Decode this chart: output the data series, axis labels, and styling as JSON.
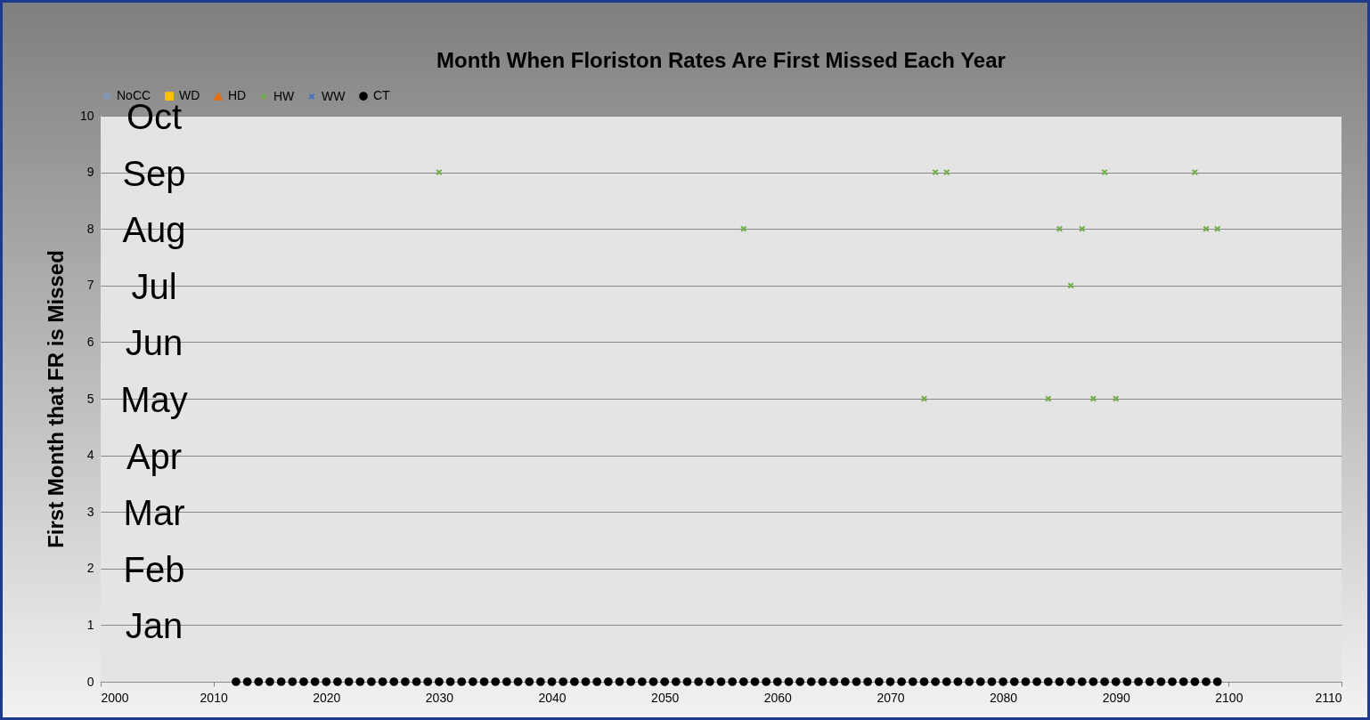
{
  "chart_data": {
    "type": "scatter",
    "title": "Month When Floriston Rates Are First Missed Each Year",
    "ylabel": "First Month that FR is Missed",
    "x": [
      2012,
      2013,
      2014,
      2015,
      2016,
      2017,
      2018,
      2019,
      2020,
      2021,
      2022,
      2023,
      2024,
      2025,
      2026,
      2027,
      2028,
      2029,
      2030,
      2031,
      2032,
      2033,
      2034,
      2035,
      2036,
      2037,
      2038,
      2039,
      2040,
      2041,
      2042,
      2043,
      2044,
      2045,
      2046,
      2047,
      2048,
      2049,
      2050,
      2051,
      2052,
      2053,
      2054,
      2055,
      2056,
      2057,
      2058,
      2059,
      2060,
      2061,
      2062,
      2063,
      2064,
      2065,
      2066,
      2067,
      2068,
      2069,
      2070,
      2071,
      2072,
      2073,
      2074,
      2075,
      2076,
      2077,
      2078,
      2079,
      2080,
      2081,
      2082,
      2083,
      2084,
      2085,
      2086,
      2087,
      2088,
      2089,
      2090,
      2091,
      2092,
      2093,
      2094,
      2095,
      2096,
      2097,
      2098,
      2099
    ],
    "series": [
      {
        "name": "NoCC",
        "color": "#8497b0",
        "marker": "diamond",
        "values": [
          null,
          null,
          null,
          null,
          null,
          null,
          null,
          null,
          null,
          null,
          null,
          null,
          null,
          null,
          null,
          null,
          null,
          null,
          null,
          null,
          null,
          null,
          null,
          null,
          null,
          null,
          null,
          null,
          null,
          null,
          null,
          null,
          null,
          null,
          null,
          null,
          null,
          null,
          null,
          null,
          null,
          null,
          null,
          null,
          null,
          null,
          null,
          null,
          null,
          null,
          null,
          null,
          null,
          null,
          null,
          null,
          null,
          null,
          null,
          null,
          null,
          null,
          null,
          null,
          null,
          null,
          null,
          null,
          null,
          null,
          null,
          null,
          null,
          null,
          null,
          null,
          null,
          null,
          null,
          null,
          null,
          null,
          null,
          null,
          null,
          null,
          null,
          null
        ]
      },
      {
        "name": "WD",
        "color": "#ffc000",
        "marker": "square",
        "values": [
          null,
          null,
          null,
          null,
          null,
          null,
          null,
          null,
          null,
          null,
          null,
          null,
          null,
          null,
          null,
          null,
          null,
          null,
          null,
          null,
          null,
          null,
          null,
          null,
          null,
          null,
          null,
          null,
          null,
          null,
          null,
          null,
          null,
          null,
          null,
          null,
          null,
          null,
          null,
          null,
          null,
          null,
          null,
          null,
          null,
          null,
          null,
          null,
          null,
          null,
          null,
          null,
          null,
          null,
          null,
          null,
          null,
          null,
          null,
          null,
          null,
          null,
          null,
          null,
          null,
          null,
          null,
          null,
          null,
          null,
          null,
          null,
          null,
          null,
          null,
          null,
          null,
          null,
          null,
          null,
          null,
          null,
          null,
          null,
          null,
          null,
          null,
          null
        ]
      },
      {
        "name": "HD",
        "color": "#e46c0a",
        "marker": "triangle",
        "values": [
          null,
          null,
          null,
          null,
          null,
          null,
          null,
          null,
          null,
          null,
          null,
          null,
          null,
          null,
          null,
          null,
          null,
          null,
          null,
          null,
          null,
          null,
          null,
          null,
          null,
          null,
          null,
          null,
          null,
          null,
          null,
          null,
          null,
          null,
          null,
          null,
          null,
          null,
          null,
          null,
          null,
          null,
          null,
          null,
          null,
          null,
          null,
          null,
          null,
          null,
          null,
          null,
          null,
          null,
          null,
          null,
          null,
          null,
          null,
          null,
          null,
          null,
          null,
          null,
          null,
          null,
          null,
          null,
          null,
          null,
          null,
          null,
          null,
          null,
          null,
          null,
          null,
          null,
          null,
          null,
          null,
          null,
          null,
          null,
          null,
          null,
          null,
          null
        ]
      },
      {
        "name": "HW",
        "color": "#70ad47",
        "marker": "cross",
        "values": [
          null,
          null,
          null,
          null,
          null,
          null,
          null,
          null,
          null,
          null,
          null,
          null,
          null,
          null,
          null,
          null,
          null,
          null,
          9,
          null,
          null,
          null,
          null,
          null,
          null,
          null,
          null,
          null,
          null,
          null,
          null,
          null,
          null,
          null,
          null,
          null,
          null,
          null,
          null,
          null,
          null,
          null,
          null,
          null,
          null,
          8,
          null,
          null,
          null,
          null,
          null,
          null,
          null,
          null,
          null,
          null,
          null,
          null,
          null,
          null,
          null,
          5,
          9,
          9,
          null,
          null,
          null,
          null,
          null,
          null,
          null,
          null,
          5,
          8,
          7,
          8,
          5,
          9,
          5,
          null,
          null,
          null,
          null,
          null,
          null,
          9,
          8,
          8
        ]
      },
      {
        "name": "WW",
        "color": "#4472c4",
        "marker": "cross",
        "values": [
          null,
          null,
          null,
          null,
          null,
          null,
          null,
          null,
          null,
          null,
          null,
          null,
          null,
          null,
          null,
          null,
          null,
          null,
          null,
          null,
          null,
          null,
          null,
          null,
          null,
          null,
          null,
          null,
          null,
          null,
          null,
          null,
          null,
          null,
          null,
          null,
          null,
          null,
          null,
          null,
          null,
          null,
          null,
          null,
          null,
          null,
          null,
          null,
          null,
          null,
          null,
          null,
          null,
          null,
          null,
          null,
          null,
          null,
          null,
          null,
          null,
          null,
          null,
          null,
          null,
          null,
          null,
          null,
          null,
          null,
          null,
          null,
          null,
          null,
          null,
          null,
          null,
          null,
          null,
          null,
          null,
          null,
          null,
          null,
          null,
          null,
          null,
          null
        ]
      },
      {
        "name": "CT",
        "color": "#000000",
        "marker": "circle",
        "values": [
          0,
          0,
          0,
          0,
          0,
          0,
          0,
          0,
          0,
          0,
          0,
          0,
          0,
          0,
          0,
          0,
          0,
          0,
          0,
          0,
          0,
          0,
          0,
          0,
          0,
          0,
          0,
          0,
          0,
          0,
          0,
          0,
          0,
          0,
          0,
          0,
          0,
          0,
          0,
          0,
          0,
          0,
          0,
          0,
          0,
          0,
          0,
          0,
          0,
          0,
          0,
          0,
          0,
          0,
          0,
          0,
          0,
          0,
          0,
          0,
          0,
          0,
          0,
          0,
          0,
          0,
          0,
          0,
          0,
          0,
          0,
          0,
          0,
          0,
          0,
          0,
          0,
          0,
          0,
          0,
          0,
          0,
          0,
          0,
          0,
          0,
          0,
          0
        ]
      }
    ],
    "xlim": [
      2000,
      2110
    ],
    "xticks": [
      2000,
      2010,
      2020,
      2030,
      2040,
      2050,
      2060,
      2070,
      2080,
      2090,
      2100,
      2110
    ],
    "ylim": [
      0,
      10
    ],
    "yticks": [
      0,
      1,
      2,
      3,
      4,
      5,
      6,
      7,
      8,
      9,
      10
    ],
    "grid": "y",
    "legend": "top",
    "annotations": [
      "Oct",
      "Sep",
      "Aug",
      "Jul",
      "Jun",
      "May",
      "Apr",
      "Mar",
      "Feb",
      "Jan"
    ]
  }
}
